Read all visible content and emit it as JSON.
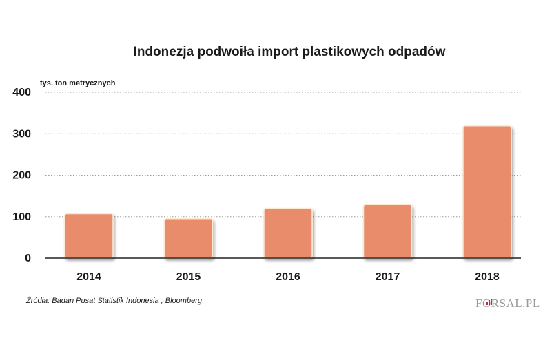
{
  "chart_data": {
    "type": "bar",
    "title": "Indonezja podwoiła import plastikowych odpadów",
    "ylabel": "tys. ton metrycznych",
    "xlabel": "",
    "categories": [
      "2014",
      "2015",
      "2016",
      "2017",
      "2018"
    ],
    "values": [
      107,
      95,
      120,
      129,
      319
    ],
    "ylim": [
      0,
      400
    ],
    "yticks": [
      0,
      100,
      200,
      300,
      400
    ],
    "grid": true,
    "bar_color": "#e88c6c",
    "bar_stroke": "#fbe9d2",
    "axis_color": "#222222",
    "grid_color": "#9a9a9a"
  },
  "source": "Źródła: Badan Pusat Statistik Indonesia , Bloomberg",
  "logo": {
    "text": "FORSAL.PL",
    "icon": "bar-chart-icon"
  }
}
